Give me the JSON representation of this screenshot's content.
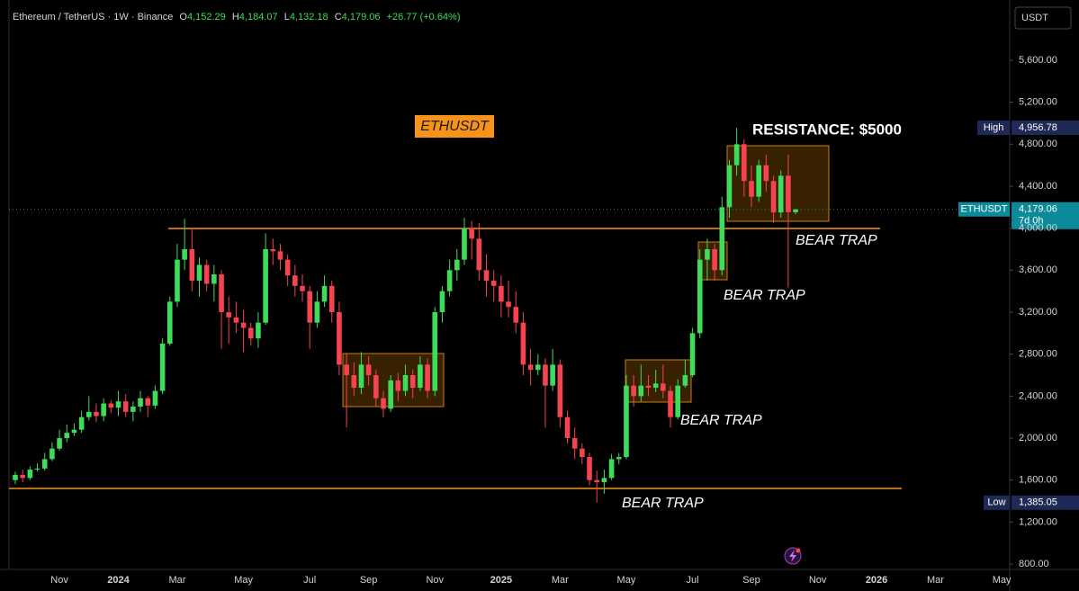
{
  "header": {
    "symbol": "Ethereum / TetherUS · 1W · Binance",
    "ohlc": [
      {
        "key": "O",
        "value": "4,152.29"
      },
      {
        "key": "H",
        "value": "4,184.07"
      },
      {
        "key": "L",
        "value": "4,132.18"
      },
      {
        "key": "C",
        "value": "4,179.06"
      }
    ],
    "change": "+26.77 (+0.64%)",
    "currency": "USDT"
  },
  "annotations": {
    "symbol_box": "ETHUSDT",
    "resistance": "RESISTANCE: $5000",
    "bear_traps": [
      "BEAR TRAP",
      "BEAR TRAP",
      "BEAR TRAP",
      "BEAR TRAP"
    ]
  },
  "chart_data": {
    "type": "candlestick",
    "up_color": "#3ddc5a",
    "down_color": "#f5434f",
    "categories": [
      null,
      null,
      null,
      null,
      null,
      null,
      "Nov",
      null,
      null,
      null,
      null,
      null,
      null,
      null,
      "2024",
      null,
      null,
      null,
      null,
      null,
      null,
      null,
      "Mar",
      null,
      null,
      null,
      null,
      null,
      null,
      null,
      null,
      "May",
      null,
      null,
      null,
      null,
      null,
      null,
      null,
      null,
      "Jul",
      null,
      null,
      null,
      null,
      null,
      null,
      null,
      "Sep",
      null,
      null,
      null,
      null,
      null,
      null,
      null,
      null,
      "Nov",
      null,
      null,
      null,
      null,
      null,
      null,
      null,
      null,
      "2025",
      null,
      null,
      null,
      null,
      null,
      null,
      null,
      "Mar",
      null,
      null,
      null,
      null,
      null,
      null,
      null,
      null,
      "May",
      null,
      null,
      null,
      null,
      null,
      null,
      null,
      null,
      "Jul",
      null,
      null,
      null,
      null,
      null,
      null,
      null,
      "Sep",
      null,
      null,
      null,
      null,
      null,
      null,
      null,
      null,
      "Nov",
      null,
      null,
      null,
      null,
      null,
      null,
      null,
      "2026",
      null,
      null,
      null,
      null,
      null,
      null,
      null,
      "Mar",
      null,
      null,
      null,
      null,
      null,
      null,
      null,
      null,
      "May"
    ],
    "open": [
      1600,
      1650,
      1620,
      1700,
      1710,
      1800,
      1900,
      2000,
      2050,
      2080,
      2200,
      2250,
      2210,
      2330,
      2290,
      2350,
      2250,
      2300,
      2380,
      2310,
      2450,
      2900,
      3300,
      3700,
      3800,
      3500,
      3650,
      3470,
      3560,
      3200,
      3150,
      3100,
      3050,
      2950,
      3100,
      3800,
      3780,
      3700,
      3550,
      3450,
      3400,
      3100,
      3300,
      3450,
      3200,
      2700,
      2600,
      2480,
      2700,
      2600,
      2380,
      2280,
      2550,
      2450,
      2600,
      2480,
      2700,
      2450,
      3200,
      3400,
      3600,
      3700,
      4000,
      3900,
      3600,
      3500,
      3450,
      3300,
      3250,
      3100,
      2700,
      2650,
      2700,
      2500,
      2700,
      2200,
      2000,
      1900,
      1820,
      1600,
      1580,
      1620,
      1800,
      1820,
      2500,
      2400,
      2500,
      2480,
      2520,
      2450,
      2200,
      2500,
      2600,
      3000,
      3700,
      3800,
      3600,
      4200,
      4600,
      4800,
      4450,
      4300,
      4600,
      4450,
      4150,
      4500,
      4152.29,
      null,
      null,
      null,
      null,
      null,
      null,
      null,
      null,
      null,
      null,
      null,
      null,
      null,
      null,
      null,
      null,
      null,
      null,
      null,
      null,
      null,
      null,
      null,
      null,
      null,
      null,
      null,
      null
    ],
    "high": [
      1680,
      1700,
      1730,
      1760,
      1860,
      1960,
      2080,
      2130,
      2140,
      2260,
      2400,
      2330,
      2380,
      2360,
      2450,
      2420,
      2350,
      2450,
      2400,
      2500,
      2950,
      3350,
      3850,
      4090,
      4000,
      3720,
      3700,
      3650,
      3600,
      3350,
      3300,
      3220,
      3100,
      3200,
      3950,
      3900,
      3850,
      3750,
      3650,
      3560,
      3450,
      3400,
      3550,
      3500,
      3300,
      2800,
      2720,
      2820,
      2780,
      2650,
      2450,
      2600,
      2620,
      2700,
      2650,
      2780,
      2760,
      3250,
      3450,
      3700,
      3800,
      4100,
      4070,
      4050,
      3750,
      3600,
      3550,
      3500,
      3400,
      3200,
      2850,
      2800,
      2760,
      2850,
      2750,
      2260,
      2100,
      1950,
      1860,
      1690,
      1700,
      1850,
      1860,
      2600,
      2600,
      2700,
      2600,
      2650,
      2700,
      2500,
      2560,
      2750,
      3050,
      3800,
      3900,
      3850,
      4300,
      4650,
      4956.78,
      4850,
      4600,
      4650,
      4700,
      4500,
      4550,
      4700,
      4184.07,
      null,
      null,
      null,
      null,
      null,
      null,
      null,
      null,
      null,
      null,
      null,
      null,
      null,
      null,
      null,
      null,
      null,
      null,
      null,
      null,
      null,
      null,
      null,
      null,
      null,
      null,
      null,
      null
    ],
    "low": [
      1560,
      1580,
      1600,
      1680,
      1690,
      1780,
      1880,
      1960,
      2020,
      2050,
      2170,
      2150,
      2160,
      2240,
      2210,
      2200,
      2160,
      2250,
      2200,
      2280,
      2420,
      2880,
      3250,
      3600,
      3400,
      3350,
      3400,
      3300,
      2850,
      2900,
      3000,
      2820,
      2880,
      2860,
      3080,
      3650,
      3600,
      3450,
      3350,
      3300,
      2850,
      3050,
      3250,
      3100,
      2600,
      2100,
      2400,
      2420,
      2500,
      2300,
      2200,
      2250,
      2350,
      2400,
      2380,
      2450,
      2380,
      2400,
      3100,
      3350,
      3500,
      3650,
      3700,
      3500,
      3350,
      3300,
      3150,
      3150,
      3000,
      2600,
      2500,
      2600,
      2100,
      2450,
      2100,
      1950,
      1800,
      1750,
      1550,
      1385.05,
      1470,
      1600,
      1750,
      1800,
      2300,
      2350,
      2400,
      2440,
      2380,
      2100,
      2180,
      2480,
      2580,
      2950,
      3500,
      3500,
      3550,
      4100,
      4500,
      4300,
      4200,
      4250,
      4350,
      4050,
      4100,
      3435,
      4132.18,
      null,
      null,
      null,
      null,
      null,
      null,
      null,
      null,
      null,
      null,
      null,
      null,
      null,
      null,
      null,
      null,
      null,
      null,
      null,
      null,
      null,
      null,
      null,
      null,
      null,
      null,
      null,
      null
    ],
    "close": [
      1650,
      1620,
      1700,
      1710,
      1800,
      1900,
      2000,
      2050,
      2080,
      2200,
      2250,
      2210,
      2330,
      2290,
      2350,
      2250,
      2300,
      2380,
      2310,
      2450,
      2900,
      3300,
      3700,
      3800,
      3500,
      3650,
      3470,
      3560,
      3200,
      3150,
      3100,
      3050,
      2950,
      3100,
      3800,
      3780,
      3700,
      3550,
      3450,
      3400,
      3100,
      3300,
      3450,
      3200,
      2700,
      2600,
      2480,
      2700,
      2600,
      2380,
      2280,
      2550,
      2450,
      2600,
      2480,
      2700,
      2450,
      3200,
      3400,
      3600,
      3700,
      4000,
      3900,
      3600,
      3500,
      3450,
      3300,
      3250,
      3100,
      2700,
      2650,
      2700,
      2500,
      2700,
      2200,
      2000,
      1900,
      1820,
      1600,
      1580,
      1620,
      1800,
      1820,
      2500,
      2400,
      2500,
      2480,
      2520,
      2450,
      2200,
      2500,
      2600,
      3000,
      3700,
      3800,
      3600,
      4200,
      4600,
      4800,
      4450,
      4300,
      4600,
      4450,
      4150,
      4500,
      4152.29,
      4179.06,
      null,
      null,
      null,
      null,
      null,
      null,
      null,
      null,
      null,
      null,
      null,
      null,
      null,
      null,
      null,
      null,
      null,
      null,
      null,
      null,
      null,
      null,
      null,
      null,
      null,
      null,
      null,
      null
    ],
    "ylim": [
      749,
      6174
    ],
    "yticks": [
      {
        "value": 800,
        "label": "800.00"
      },
      {
        "value": 1200,
        "label": "1,200.00"
      },
      {
        "value": 1600,
        "label": "1,600.00"
      },
      {
        "value": 2000,
        "label": "2,000.00"
      },
      {
        "value": 2400,
        "label": "2,400.00"
      },
      {
        "value": 2800,
        "label": "2,800.00"
      },
      {
        "value": 3200,
        "label": "3,200.00"
      },
      {
        "value": 3600,
        "label": "3,600.00"
      },
      {
        "value": 4000,
        "label": "4,000.00"
      },
      {
        "value": 4400,
        "label": "4,400.00"
      },
      {
        "value": 4800,
        "label": "4,800.00"
      },
      {
        "value": 5200,
        "label": "5,200.00"
      },
      {
        "value": 5600,
        "label": "5,600.00"
      }
    ],
    "price_tags": [
      {
        "label": "High",
        "value": 4956.78,
        "value_label": "4,956.78",
        "color": "#1e2a55"
      },
      {
        "label": "ETHUSDT",
        "value": 4179.06,
        "value_label": "4,179.06",
        "countdown": "7d 0h",
        "color": "#0b8a9a"
      },
      {
        "label": "Low",
        "value": 1385.05,
        "value_label": "1,385.05",
        "color": "#1e2a55"
      }
    ]
  }
}
